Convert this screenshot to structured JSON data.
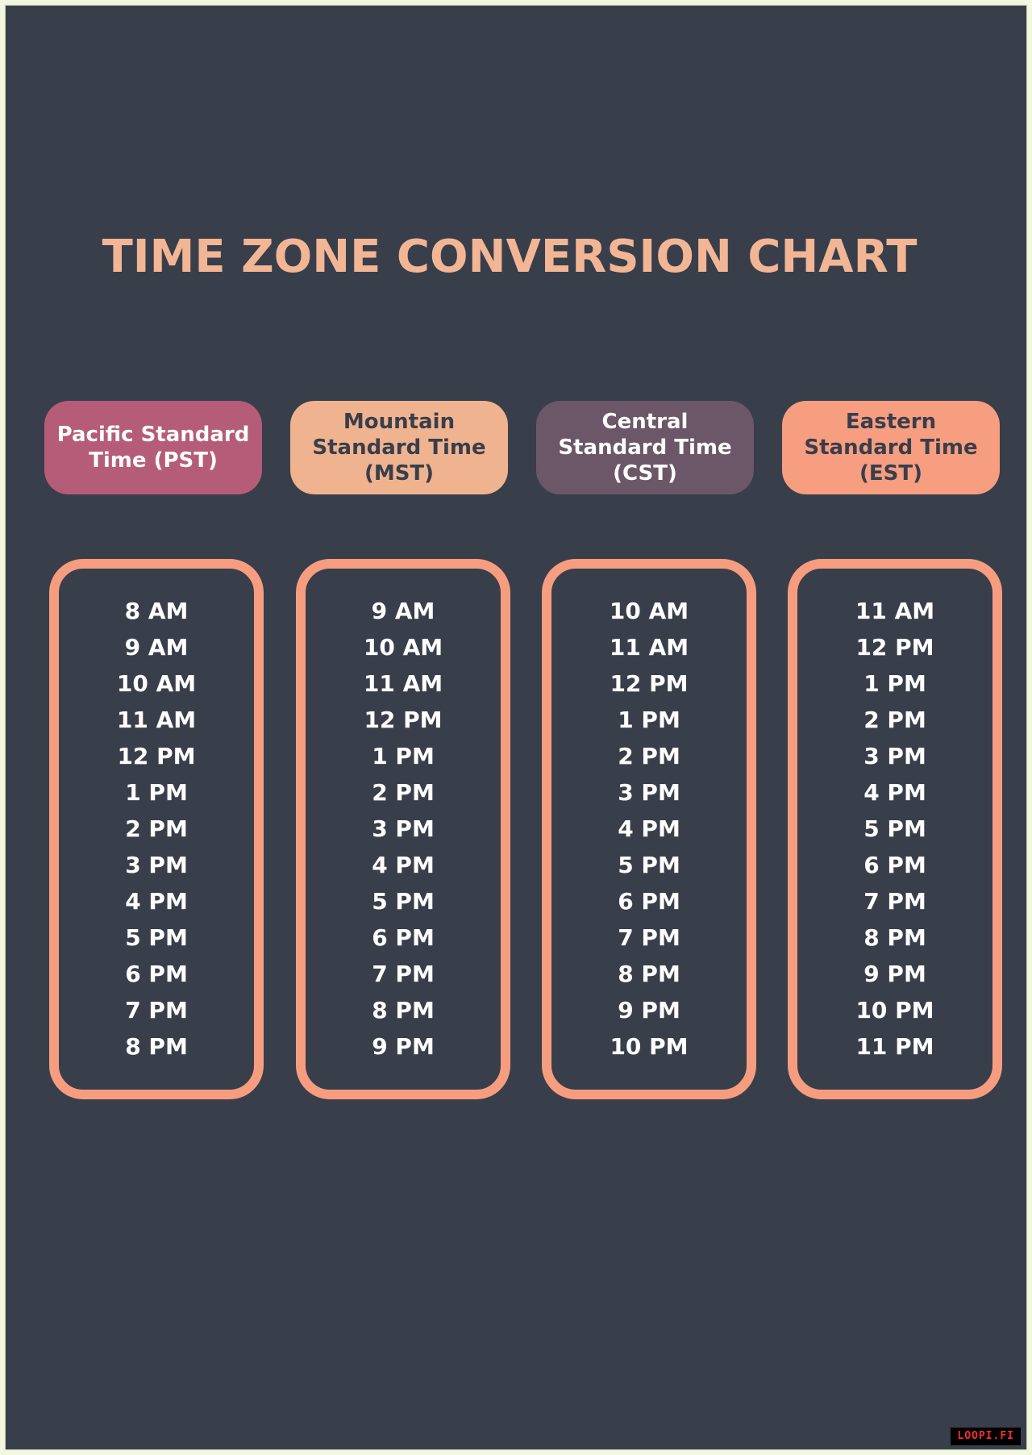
{
  "title": "TIME ZONE CONVERSION CHART",
  "watermark": "LOOPI.FI",
  "colors": {
    "background": "#393e4b",
    "title": "#f2b695",
    "box_border": "#f69d80",
    "time_text": "#ffffff"
  },
  "columns": [
    {
      "header": "Pacific Standard Time (PST)",
      "header_bg": "#b55c78",
      "header_color": "#ffffff",
      "times": [
        "8 AM",
        "9 AM",
        "10 AM",
        "11 AM",
        "12 PM",
        "1 PM",
        "2 PM",
        "3 PM",
        "4 PM",
        "5 PM",
        "6 PM",
        "7 PM",
        "8 PM"
      ]
    },
    {
      "header": "Mountain Standard Time (MST)",
      "header_bg": "#efb38f",
      "header_color": "#393e4b",
      "times": [
        "9 AM",
        "10 AM",
        "11 AM",
        "12 PM",
        "1 PM",
        "2 PM",
        "3 PM",
        "4 PM",
        "5 PM",
        "6 PM",
        "7 PM",
        "8 PM",
        "9 PM"
      ]
    },
    {
      "header": "Central Standard Time (CST)",
      "header_bg": "#6c5768",
      "header_color": "#ffffff",
      "times": [
        "10 AM",
        "11 AM",
        "12 PM",
        "1 PM",
        "2 PM",
        "3 PM",
        "4 PM",
        "5 PM",
        "6 PM",
        "7 PM",
        "8 PM",
        "9 PM",
        "10 PM"
      ]
    },
    {
      "header": "Eastern Standard Time (EST)",
      "header_bg": "#f79d80",
      "header_color": "#393e4b",
      "times": [
        "11 AM",
        "12 PM",
        "1 PM",
        "2 PM",
        "3 PM",
        "4 PM",
        "5 PM",
        "6 PM",
        "7 PM",
        "8 PM",
        "9 PM",
        "10 PM",
        "11 PM"
      ]
    }
  ]
}
